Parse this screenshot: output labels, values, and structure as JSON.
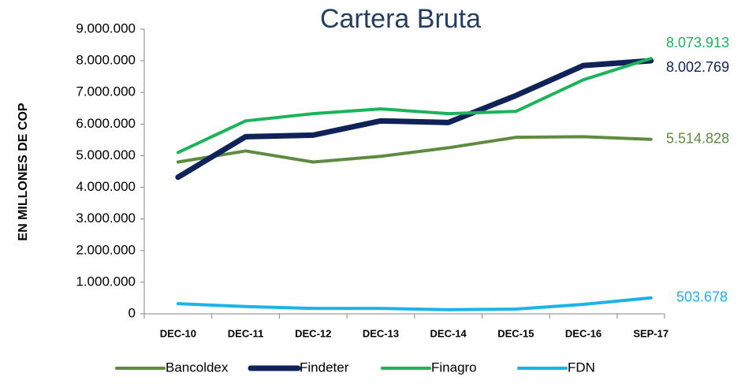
{
  "chart_data": {
    "type": "line",
    "title": "Cartera Bruta",
    "y_label": "EN MILLONES DE COP",
    "categories": [
      "DEC-10",
      "DEC-11",
      "DEC-12",
      "DEC-13",
      "DEC-14",
      "DEC-15",
      "DEC-16",
      "SEP-17"
    ],
    "series": [
      {
        "name": "Bancoldex",
        "color": "#5e8b3f",
        "values": [
          4800000,
          5150000,
          4800000,
          4980000,
          5250000,
          5580000,
          5600000,
          5514828
        ],
        "value_labels": [
          null,
          null,
          null,
          null,
          null,
          null,
          null,
          "5.514.828"
        ]
      },
      {
        "name": "Findeter",
        "color": "#0f2358",
        "values": [
          4320000,
          5600000,
          5650000,
          6100000,
          6050000,
          6900000,
          7850000,
          8002769
        ],
        "value_labels": [
          null,
          null,
          null,
          null,
          null,
          null,
          null,
          "8.002.769"
        ]
      },
      {
        "name": "Finagro",
        "color": "#1db35a",
        "values": [
          5100000,
          6100000,
          6330000,
          6480000,
          6330000,
          6400000,
          7400000,
          8073913
        ],
        "value_labels": [
          null,
          null,
          null,
          null,
          null,
          null,
          null,
          "8.073.913"
        ]
      },
      {
        "name": "FDN",
        "color": "#1cb2ea",
        "values": [
          320000,
          230000,
          170000,
          170000,
          130000,
          150000,
          300000,
          503678
        ],
        "value_labels": [
          null,
          null,
          null,
          null,
          null,
          null,
          null,
          "503.678"
        ]
      }
    ],
    "ylim": [
      0,
      9000000
    ],
    "yticks": [
      0,
      {
        "value": 1000000,
        "label": "1.000.000"
      },
      {
        "value": 2000000,
        "label": "2.000.000"
      },
      {
        "value": 3000000,
        "label": "3.000.000"
      },
      {
        "value": 4000000,
        "label": "4.000.000"
      },
      {
        "value": 5000000,
        "label": "5.000.000"
      },
      {
        "value": 6000000,
        "label": "6.000.000"
      },
      {
        "value": 7000000,
        "label": "7.000.000"
      },
      {
        "value": 8000000,
        "label": "8.000.000"
      },
      {
        "value": 9000000,
        "label": "9.000.000"
      }
    ],
    "legend": "bottom"
  }
}
